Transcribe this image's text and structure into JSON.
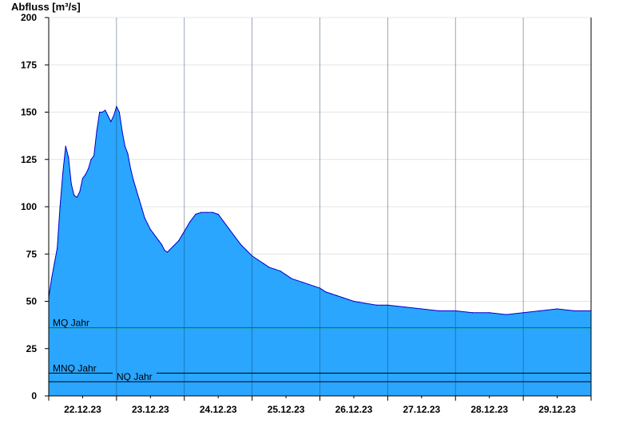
{
  "chart_data": {
    "type": "area",
    "ylabel": "Abfluss [m³/s]",
    "ylim": [
      0,
      200
    ],
    "yticks": [
      0,
      25,
      50,
      75,
      100,
      125,
      150,
      175,
      200
    ],
    "xlim": [
      "21.12.23 00:00",
      "29.12.23 00:00"
    ],
    "xticks": [
      "22.12.23",
      "23.12.23",
      "24.12.23",
      "25.12.23",
      "26.12.23",
      "27.12.23",
      "28.12.23",
      "29.12.23"
    ],
    "grid": "horizontal",
    "fill_color": "#2aa6ff",
    "line_color": "#0000cc",
    "series": [
      {
        "x_hours": [
          0,
          1,
          2,
          3,
          4,
          5,
          6,
          7,
          8,
          9,
          10,
          11,
          12,
          13,
          14,
          15,
          16,
          17,
          18,
          19,
          20,
          21,
          22,
          23,
          24,
          25,
          26,
          27,
          28,
          29,
          30,
          31,
          32,
          33,
          34,
          35,
          36,
          37,
          38,
          39,
          40,
          41,
          42,
          44,
          46,
          48,
          50,
          52,
          54,
          56,
          58,
          60,
          62,
          64,
          66,
          68,
          70,
          72,
          74,
          76,
          78,
          80,
          82,
          84,
          86,
          88,
          90,
          92,
          94,
          96,
          97,
          98,
          100,
          102,
          104,
          106,
          108,
          112,
          116,
          120,
          126,
          132,
          138,
          144,
          150,
          156,
          162,
          168,
          174,
          180,
          186,
          192
        ],
        "values": [
          52,
          62,
          70,
          78,
          100,
          118,
          132,
          126,
          112,
          106,
          105,
          108,
          115,
          117,
          120,
          125,
          127,
          140,
          150,
          150,
          151,
          148,
          145,
          148,
          153,
          150,
          140,
          132,
          128,
          120,
          114,
          109,
          104,
          99,
          94,
          91,
          88,
          86,
          84,
          82,
          80,
          77,
          76,
          79,
          82,
          87,
          92,
          96,
          97,
          97,
          97,
          96,
          92,
          88,
          84,
          80,
          77,
          74,
          72,
          70,
          68,
          67,
          66,
          64,
          62,
          61,
          60,
          59,
          58,
          57,
          56,
          55,
          54,
          53,
          52,
          51,
          50,
          49,
          48,
          48,
          47,
          46,
          45,
          45,
          44,
          44,
          43,
          44,
          45,
          46,
          45,
          45
        ]
      }
    ],
    "reference_lines": [
      {
        "label": "MQ Jahr",
        "value": 36,
        "color": "#008000"
      },
      {
        "label": "MNQ Jahr",
        "value": 12,
        "color": "#000000"
      },
      {
        "label": "NQ Jahr",
        "value": 7.5,
        "color": "#000000"
      }
    ]
  }
}
